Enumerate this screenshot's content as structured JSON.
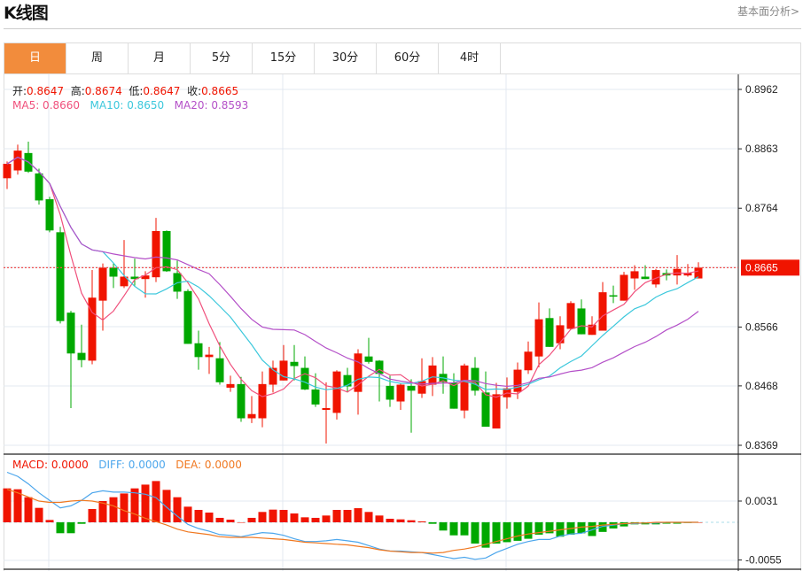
{
  "header": {
    "title": "K线图",
    "link": "基本面分析>"
  },
  "tabs": [
    "日",
    "周",
    "月",
    "5分",
    "15分",
    "30分",
    "60分",
    "4时"
  ],
  "active_tab": 0,
  "ohlc_legend": {
    "open_label": "开:",
    "open": "0.8647",
    "high_label": "高:",
    "high": "0.8674",
    "low_label": "低:",
    "low": "0.8647",
    "close_label": "收:",
    "close": "0.8665"
  },
  "ma_legend": {
    "ma5": "MA5: 0.8660",
    "ma10": "MA10: 0.8650",
    "ma20": "MA20: 0.8593"
  },
  "macd_legend": {
    "macd": "MACD: 0.0000",
    "diff": "DIFF: 0.0000",
    "dea": "DEA: 0.0000"
  },
  "colors": {
    "up": "#f01400",
    "down": "#00a800",
    "ma5": "#f0507c",
    "ma10": "#3cc8dc",
    "ma20": "#b450c8",
    "diff": "#4ca6ec",
    "dea": "#f07820",
    "accent": "#f28c3c"
  },
  "chart_data": [
    {
      "type": "candlestick",
      "title": "K线图",
      "y_ticks": [
        "0.8962",
        "0.8863",
        "0.8764",
        "0.8566",
        "0.8468",
        "0.8369"
      ],
      "y_tick_values": [
        0.8962,
        0.8863,
        0.8764,
        0.8566,
        0.8468,
        0.8369
      ],
      "ylim": [
        0.8369,
        0.8962
      ],
      "current_price": "0.8665",
      "current_price_value": 0.8665,
      "grid": true,
      "ohlc": [
        [
          0.8814,
          0.8842,
          0.8796,
          0.8838
        ],
        [
          0.8827,
          0.887,
          0.882,
          0.886
        ],
        [
          0.8856,
          0.8875,
          0.8823,
          0.8825
        ],
        [
          0.8822,
          0.883,
          0.877,
          0.8777
        ],
        [
          0.8779,
          0.8783,
          0.8724,
          0.8727
        ],
        [
          0.8724,
          0.8733,
          0.8572,
          0.8576
        ],
        [
          0.859,
          0.8593,
          0.8431,
          0.8522
        ],
        [
          0.8523,
          0.857,
          0.8499,
          0.8511
        ],
        [
          0.851,
          0.8661,
          0.8504,
          0.8615
        ],
        [
          0.861,
          0.8672,
          0.856,
          0.8665
        ],
        [
          0.8665,
          0.8672,
          0.8631,
          0.865
        ],
        [
          0.8634,
          0.8711,
          0.8631,
          0.865
        ],
        [
          0.865,
          0.868,
          0.8635,
          0.8646
        ],
        [
          0.8646,
          0.8659,
          0.8615,
          0.8652
        ],
        [
          0.8649,
          0.8748,
          0.8641,
          0.8726
        ],
        [
          0.8726,
          0.8727,
          0.8658,
          0.8659
        ],
        [
          0.8656,
          0.8677,
          0.8613,
          0.8625
        ],
        [
          0.8626,
          0.8629,
          0.8538,
          0.8538
        ],
        [
          0.8539,
          0.856,
          0.8495,
          0.8516
        ],
        [
          0.8516,
          0.8533,
          0.8488,
          0.852
        ],
        [
          0.8514,
          0.8541,
          0.847,
          0.8474
        ],
        [
          0.8465,
          0.8485,
          0.8458,
          0.8471
        ],
        [
          0.8471,
          0.8483,
          0.8408,
          0.8414
        ],
        [
          0.8414,
          0.8451,
          0.8406,
          0.8421
        ],
        [
          0.8414,
          0.8492,
          0.8399,
          0.8471
        ],
        [
          0.847,
          0.851,
          0.8457,
          0.8498
        ],
        [
          0.8477,
          0.8536,
          0.8477,
          0.851
        ],
        [
          0.8508,
          0.8536,
          0.8477,
          0.8501
        ],
        [
          0.8498,
          0.8517,
          0.8461,
          0.8462
        ],
        [
          0.8462,
          0.8489,
          0.8433,
          0.8437
        ],
        [
          0.8428,
          0.8474,
          0.8372,
          0.8431
        ],
        [
          0.8423,
          0.8494,
          0.8412,
          0.8492
        ],
        [
          0.8486,
          0.8498,
          0.8457,
          0.8467
        ],
        [
          0.8458,
          0.8529,
          0.842,
          0.8522
        ],
        [
          0.8517,
          0.8548,
          0.8505,
          0.8508
        ],
        [
          0.851,
          0.8511,
          0.8442,
          0.8488
        ],
        [
          0.8468,
          0.8485,
          0.8433,
          0.8445
        ],
        [
          0.8442,
          0.8473,
          0.8428,
          0.847
        ],
        [
          0.8468,
          0.8479,
          0.839,
          0.846
        ],
        [
          0.8455,
          0.8514,
          0.8448,
          0.8476
        ],
        [
          0.847,
          0.8516,
          0.8451,
          0.8502
        ],
        [
          0.8488,
          0.8517,
          0.8455,
          0.8474
        ],
        [
          0.8473,
          0.8489,
          0.843,
          0.843
        ],
        [
          0.8427,
          0.8505,
          0.8414,
          0.8502
        ],
        [
          0.8498,
          0.8516,
          0.8452,
          0.846
        ],
        [
          0.8457,
          0.8492,
          0.84,
          0.84
        ],
        [
          0.8397,
          0.8473,
          0.8397,
          0.8454
        ],
        [
          0.8449,
          0.8482,
          0.843,
          0.8464
        ],
        [
          0.8458,
          0.8507,
          0.8446,
          0.8495
        ],
        [
          0.8494,
          0.8542,
          0.8488,
          0.8525
        ],
        [
          0.8517,
          0.8607,
          0.8499,
          0.8579
        ],
        [
          0.8581,
          0.8597,
          0.8533,
          0.8533
        ],
        [
          0.8539,
          0.8584,
          0.8529,
          0.8569
        ],
        [
          0.8563,
          0.8609,
          0.8563,
          0.8606
        ],
        [
          0.8597,
          0.8612,
          0.8554,
          0.8554
        ],
        [
          0.8553,
          0.8584,
          0.8553,
          0.857
        ],
        [
          0.856,
          0.8641,
          0.856,
          0.8624
        ],
        [
          0.8619,
          0.8635,
          0.8606,
          0.8618
        ],
        [
          0.861,
          0.8658,
          0.861,
          0.8653
        ],
        [
          0.8647,
          0.8669,
          0.8628,
          0.8659
        ],
        [
          0.865,
          0.8669,
          0.8646,
          0.8646
        ],
        [
          0.8637,
          0.8663,
          0.8632,
          0.8661
        ],
        [
          0.8656,
          0.8662,
          0.8644,
          0.8652
        ],
        [
          0.8652,
          0.8686,
          0.8637,
          0.8663
        ],
        [
          0.8652,
          0.8671,
          0.865,
          0.8656
        ],
        [
          0.8647,
          0.8674,
          0.8647,
          0.8665
        ]
      ],
      "ma_periods": [
        5,
        10,
        20
      ]
    },
    {
      "type": "bar+line",
      "title": "MACD",
      "y_ticks": [
        "0.0031",
        "-0.0055"
      ],
      "y_tick_values": [
        0.0031,
        -0.0055
      ],
      "ylim": [
        -0.0057,
        0.0078
      ],
      "histogram": [
        0.00495,
        0.00482,
        0.00366,
        0.00211,
        0.00034,
        -0.00159,
        -0.00159,
        -0.00022,
        0.00194,
        0.0031,
        0.00366,
        0.00421,
        0.00495,
        0.0055,
        0.00602,
        0.00473,
        0.00366,
        0.00228,
        0.00181,
        0.00142,
        0.00065,
        0.00039,
        0.0,
        0.00065,
        0.00151,
        0.00185,
        0.00181,
        0.00129,
        0.00073,
        0.00065,
        0.00099,
        0.00181,
        0.00181,
        0.00206,
        0.00151,
        0.00099,
        0.00052,
        0.00043,
        0.0003,
        0.00013,
        -0.00022,
        -0.0012,
        -0.0019,
        -0.0019,
        -0.0031,
        -0.0037,
        -0.0031,
        -0.0029,
        -0.0027,
        -0.0024,
        -0.0018,
        -0.0016,
        -0.0021,
        -0.0018,
        -0.0016,
        -0.002,
        -0.0014,
        -0.0009,
        -0.0006,
        -0.0003,
        -0.0003,
        -0.0003,
        -0.0002,
        -0.0002,
        -0.0001,
        0.0
      ],
      "diff": [
        0.0073,
        0.0067,
        0.0056,
        0.0043,
        0.0032,
        0.0021,
        0.0024,
        0.0032,
        0.0043,
        0.0046,
        0.0044,
        0.0044,
        0.0043,
        0.0041,
        0.0036,
        0.0022,
        0.0009,
        -0.0003,
        -0.0009,
        -0.0013,
        -0.0018,
        -0.0019,
        -0.0021,
        -0.0018,
        -0.0015,
        -0.0016,
        -0.0019,
        -0.0024,
        -0.0028,
        -0.0028,
        -0.0027,
        -0.0025,
        -0.0027,
        -0.0029,
        -0.0034,
        -0.0039,
        -0.0042,
        -0.0042,
        -0.0043,
        -0.0044,
        -0.0047,
        -0.005,
        -0.0053,
        -0.0051,
        -0.0054,
        -0.0052,
        -0.0044,
        -0.0038,
        -0.0032,
        -0.0028,
        -0.0025,
        -0.0025,
        -0.002,
        -0.0017,
        -0.0016,
        -0.0011,
        -0.0006,
        -0.0004,
        -0.0002,
        -0.0002,
        -0.0001,
        -0.0001,
        0.0,
        0.0,
        0.0,
        0.0
      ],
      "dea": [
        0.0048,
        0.0043,
        0.0037,
        0.0031,
        0.0029,
        0.0029,
        0.0031,
        0.0032,
        0.0031,
        0.0028,
        0.0024,
        0.0017,
        0.0012,
        0.0006,
        0.0001,
        -0.0004,
        -0.001,
        -0.0014,
        -0.0016,
        -0.0018,
        -0.0021,
        -0.0022,
        -0.0022,
        -0.0022,
        -0.0023,
        -0.0024,
        -0.0025,
        -0.0027,
        -0.0029,
        -0.003,
        -0.0031,
        -0.0032,
        -0.0033,
        -0.0035,
        -0.0037,
        -0.004,
        -0.0042,
        -0.0043,
        -0.0044,
        -0.0044,
        -0.0045,
        -0.0044,
        -0.0041,
        -0.0039,
        -0.0036,
        -0.0032,
        -0.0028,
        -0.0024,
        -0.002,
        -0.0017,
        -0.0015,
        -0.0013,
        -0.0011,
        -0.0009,
        -0.0007,
        -0.0006,
        -0.0004,
        -0.0003,
        -0.0002,
        -0.0001,
        -0.0001,
        0.0,
        0.0,
        0.0,
        0.0,
        0.0
      ]
    }
  ]
}
